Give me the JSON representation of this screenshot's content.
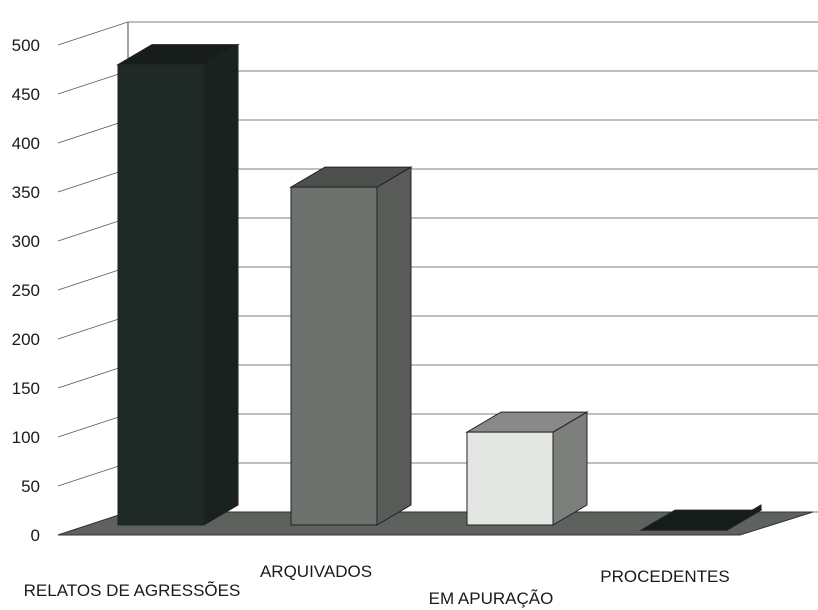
{
  "chart_data": {
    "type": "bar",
    "style": "3d",
    "categories": [
      "RELATOS DE AGRESSÕES",
      "ARQUIVADOS",
      "EM APURAÇÃO",
      "PROCEDENTES"
    ],
    "values": [
      480,
      355,
      105,
      5
    ],
    "yticks": [
      0,
      50,
      100,
      150,
      200,
      250,
      300,
      350,
      400,
      450,
      500
    ],
    "ylim": [
      0,
      500
    ],
    "grid": true,
    "legend": "none",
    "colors": [
      "#1f2a26",
      "#6e726e",
      "#e3e6e2",
      "#1c2a24"
    ],
    "title": "",
    "xlabel": "",
    "ylabel": ""
  }
}
